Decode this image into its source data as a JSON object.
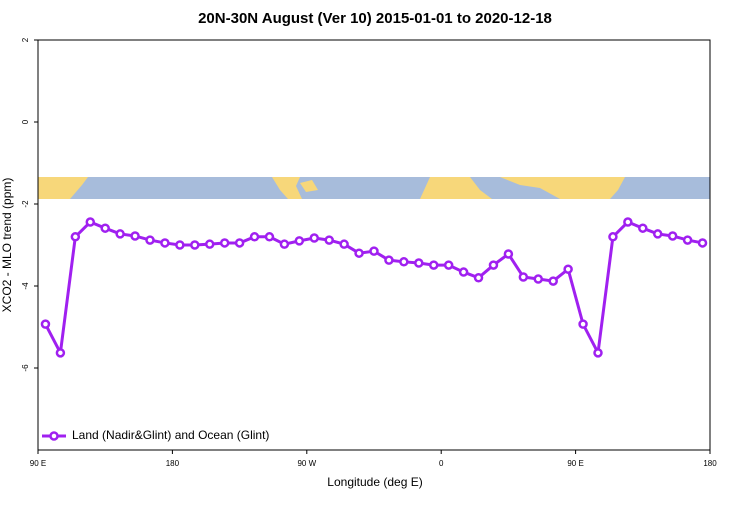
{
  "chart_data": {
    "type": "line",
    "title": "20N-30N August (Ver 10)   2015-01-01 to 2020-12-18",
    "xlabel": "Longitude (deg E)",
    "ylabel": "XCO2 - MLO trend (ppm)",
    "xlim": [
      90,
      540
    ],
    "xticks": [
      {
        "value": 90,
        "label": "90 E"
      },
      180,
      {
        "value": 270,
        "label": "90 W"
      },
      {
        "value": 360,
        "label": "0"
      },
      {
        "value": 450,
        "label": "90 E"
      },
      {
        "value": 540,
        "label": "180"
      }
    ],
    "ylim": [
      -8,
      2
    ],
    "yticks": [
      -6,
      -4,
      -2,
      0,
      2
    ],
    "legend": "bottom-left",
    "x": [
      95,
      105,
      115,
      125,
      135,
      145,
      155,
      165,
      175,
      185,
      195,
      205,
      215,
      225,
      235,
      245,
      255,
      265,
      275,
      285,
      295,
      305,
      315,
      325,
      335,
      345,
      355,
      365,
      375,
      385,
      395,
      405,
      415,
      425,
      435,
      445,
      455,
      465,
      475,
      485,
      495,
      505,
      515,
      525,
      535
    ],
    "series": [
      {
        "name": "Land (Nadir&Glint) and Ocean (Glint)",
        "color": "#a020f0",
        "values": [
          -4.93,
          -5.63,
          -2.8,
          -2.44,
          -2.59,
          -2.73,
          -2.78,
          -2.88,
          -2.95,
          -3.0,
          -3.0,
          -2.98,
          -2.95,
          -2.95,
          -2.8,
          -2.8,
          -2.98,
          -2.9,
          -2.83,
          -2.88,
          -2.98,
          -3.2,
          -3.15,
          -3.37,
          -3.41,
          -3.44,
          -3.49,
          -3.49,
          -3.66,
          -3.8,
          -3.49,
          -3.22,
          -3.78,
          -3.83,
          -3.88,
          -3.59,
          -4.93,
          -5.63,
          -2.8,
          -2.44,
          -2.59,
          -2.73,
          -2.78,
          -2.88,
          -2.95
        ]
      }
    ]
  }
}
